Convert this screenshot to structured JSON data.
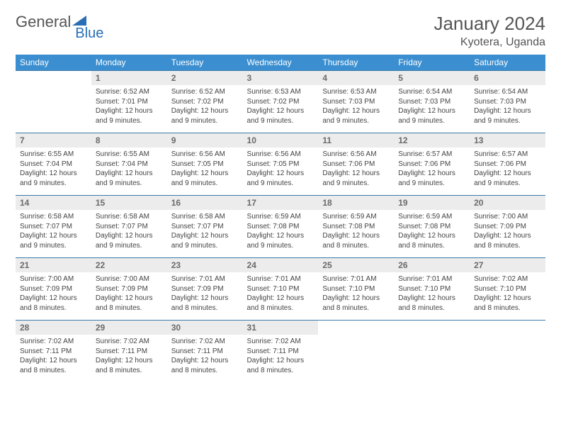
{
  "brand": {
    "part1": "General",
    "part2": "Blue"
  },
  "title": "January 2024",
  "location": "Kyotera, Uganda",
  "colors": {
    "header_bg": "#3b8fd0",
    "header_text": "#ffffff",
    "row_border": "#3b7aa8",
    "daynum_bg": "#ececec",
    "daynum_text": "#6a6a6a",
    "body_text": "#444444",
    "title_text": "#555555",
    "brand_blue": "#2a6fb5"
  },
  "dow": [
    "Sunday",
    "Monday",
    "Tuesday",
    "Wednesday",
    "Thursday",
    "Friday",
    "Saturday"
  ],
  "weeks": [
    [
      {
        "n": "",
        "lines": []
      },
      {
        "n": "1",
        "lines": [
          "Sunrise: 6:52 AM",
          "Sunset: 7:01 PM",
          "Daylight: 12 hours",
          "and 9 minutes."
        ]
      },
      {
        "n": "2",
        "lines": [
          "Sunrise: 6:52 AM",
          "Sunset: 7:02 PM",
          "Daylight: 12 hours",
          "and 9 minutes."
        ]
      },
      {
        "n": "3",
        "lines": [
          "Sunrise: 6:53 AM",
          "Sunset: 7:02 PM",
          "Daylight: 12 hours",
          "and 9 minutes."
        ]
      },
      {
        "n": "4",
        "lines": [
          "Sunrise: 6:53 AM",
          "Sunset: 7:03 PM",
          "Daylight: 12 hours",
          "and 9 minutes."
        ]
      },
      {
        "n": "5",
        "lines": [
          "Sunrise: 6:54 AM",
          "Sunset: 7:03 PM",
          "Daylight: 12 hours",
          "and 9 minutes."
        ]
      },
      {
        "n": "6",
        "lines": [
          "Sunrise: 6:54 AM",
          "Sunset: 7:03 PM",
          "Daylight: 12 hours",
          "and 9 minutes."
        ]
      }
    ],
    [
      {
        "n": "7",
        "lines": [
          "Sunrise: 6:55 AM",
          "Sunset: 7:04 PM",
          "Daylight: 12 hours",
          "and 9 minutes."
        ]
      },
      {
        "n": "8",
        "lines": [
          "Sunrise: 6:55 AM",
          "Sunset: 7:04 PM",
          "Daylight: 12 hours",
          "and 9 minutes."
        ]
      },
      {
        "n": "9",
        "lines": [
          "Sunrise: 6:56 AM",
          "Sunset: 7:05 PM",
          "Daylight: 12 hours",
          "and 9 minutes."
        ]
      },
      {
        "n": "10",
        "lines": [
          "Sunrise: 6:56 AM",
          "Sunset: 7:05 PM",
          "Daylight: 12 hours",
          "and 9 minutes."
        ]
      },
      {
        "n": "11",
        "lines": [
          "Sunrise: 6:56 AM",
          "Sunset: 7:06 PM",
          "Daylight: 12 hours",
          "and 9 minutes."
        ]
      },
      {
        "n": "12",
        "lines": [
          "Sunrise: 6:57 AM",
          "Sunset: 7:06 PM",
          "Daylight: 12 hours",
          "and 9 minutes."
        ]
      },
      {
        "n": "13",
        "lines": [
          "Sunrise: 6:57 AM",
          "Sunset: 7:06 PM",
          "Daylight: 12 hours",
          "and 9 minutes."
        ]
      }
    ],
    [
      {
        "n": "14",
        "lines": [
          "Sunrise: 6:58 AM",
          "Sunset: 7:07 PM",
          "Daylight: 12 hours",
          "and 9 minutes."
        ]
      },
      {
        "n": "15",
        "lines": [
          "Sunrise: 6:58 AM",
          "Sunset: 7:07 PM",
          "Daylight: 12 hours",
          "and 9 minutes."
        ]
      },
      {
        "n": "16",
        "lines": [
          "Sunrise: 6:58 AM",
          "Sunset: 7:07 PM",
          "Daylight: 12 hours",
          "and 9 minutes."
        ]
      },
      {
        "n": "17",
        "lines": [
          "Sunrise: 6:59 AM",
          "Sunset: 7:08 PM",
          "Daylight: 12 hours",
          "and 9 minutes."
        ]
      },
      {
        "n": "18",
        "lines": [
          "Sunrise: 6:59 AM",
          "Sunset: 7:08 PM",
          "Daylight: 12 hours",
          "and 8 minutes."
        ]
      },
      {
        "n": "19",
        "lines": [
          "Sunrise: 6:59 AM",
          "Sunset: 7:08 PM",
          "Daylight: 12 hours",
          "and 8 minutes."
        ]
      },
      {
        "n": "20",
        "lines": [
          "Sunrise: 7:00 AM",
          "Sunset: 7:09 PM",
          "Daylight: 12 hours",
          "and 8 minutes."
        ]
      }
    ],
    [
      {
        "n": "21",
        "lines": [
          "Sunrise: 7:00 AM",
          "Sunset: 7:09 PM",
          "Daylight: 12 hours",
          "and 8 minutes."
        ]
      },
      {
        "n": "22",
        "lines": [
          "Sunrise: 7:00 AM",
          "Sunset: 7:09 PM",
          "Daylight: 12 hours",
          "and 8 minutes."
        ]
      },
      {
        "n": "23",
        "lines": [
          "Sunrise: 7:01 AM",
          "Sunset: 7:09 PM",
          "Daylight: 12 hours",
          "and 8 minutes."
        ]
      },
      {
        "n": "24",
        "lines": [
          "Sunrise: 7:01 AM",
          "Sunset: 7:10 PM",
          "Daylight: 12 hours",
          "and 8 minutes."
        ]
      },
      {
        "n": "25",
        "lines": [
          "Sunrise: 7:01 AM",
          "Sunset: 7:10 PM",
          "Daylight: 12 hours",
          "and 8 minutes."
        ]
      },
      {
        "n": "26",
        "lines": [
          "Sunrise: 7:01 AM",
          "Sunset: 7:10 PM",
          "Daylight: 12 hours",
          "and 8 minutes."
        ]
      },
      {
        "n": "27",
        "lines": [
          "Sunrise: 7:02 AM",
          "Sunset: 7:10 PM",
          "Daylight: 12 hours",
          "and 8 minutes."
        ]
      }
    ],
    [
      {
        "n": "28",
        "lines": [
          "Sunrise: 7:02 AM",
          "Sunset: 7:11 PM",
          "Daylight: 12 hours",
          "and 8 minutes."
        ]
      },
      {
        "n": "29",
        "lines": [
          "Sunrise: 7:02 AM",
          "Sunset: 7:11 PM",
          "Daylight: 12 hours",
          "and 8 minutes."
        ]
      },
      {
        "n": "30",
        "lines": [
          "Sunrise: 7:02 AM",
          "Sunset: 7:11 PM",
          "Daylight: 12 hours",
          "and 8 minutes."
        ]
      },
      {
        "n": "31",
        "lines": [
          "Sunrise: 7:02 AM",
          "Sunset: 7:11 PM",
          "Daylight: 12 hours",
          "and 8 minutes."
        ]
      },
      {
        "n": "",
        "lines": []
      },
      {
        "n": "",
        "lines": []
      },
      {
        "n": "",
        "lines": []
      }
    ]
  ]
}
